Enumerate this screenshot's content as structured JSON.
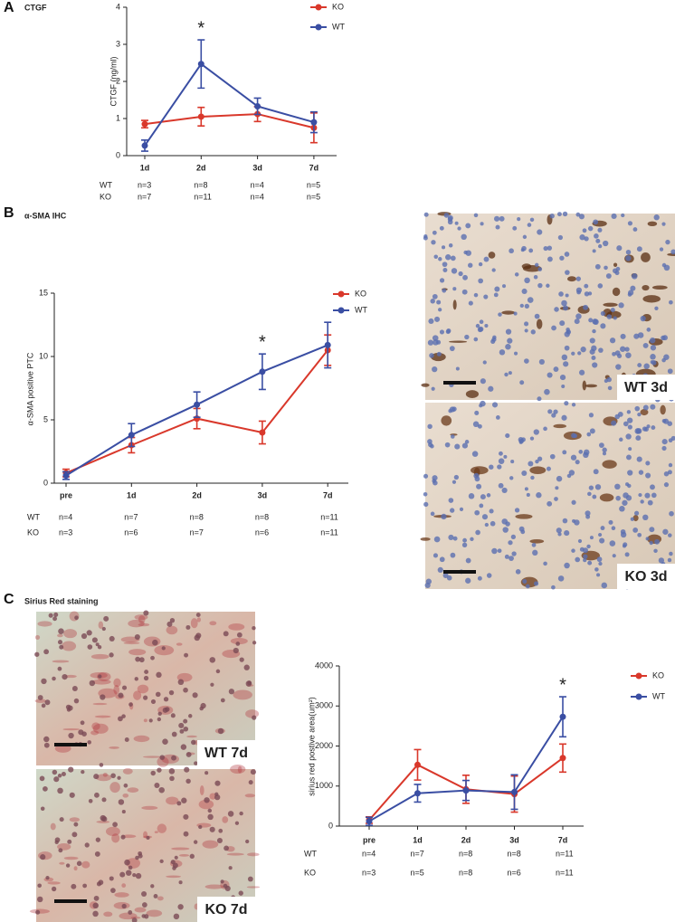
{
  "panels": [
    {
      "letter": "A"
    },
    {
      "letter": "B",
      "images": [
        "WT 3d",
        "KO 3d"
      ]
    },
    {
      "letter": "C",
      "images": [
        "WT 7d",
        "KO 7d"
      ]
    }
  ],
  "chart_data": [
    {
      "type": "line",
      "title": "CTGF",
      "y_label": "CTGF (ng/ml)",
      "categories": [
        "1d",
        "2d",
        "3d",
        "7d"
      ],
      "ylim": [
        0,
        4
      ],
      "yticks": [
        0,
        1,
        2,
        3,
        4
      ],
      "series": [
        {
          "name": "KO",
          "color": "#d9382b",
          "values": [
            0.85,
            1.05,
            1.12,
            0.75
          ],
          "errors": [
            0.1,
            0.25,
            0.2,
            0.4
          ]
        },
        {
          "name": "WT",
          "color": "#3a4ea3",
          "values": [
            0.27,
            2.47,
            1.33,
            0.9
          ],
          "errors": [
            0.15,
            0.65,
            0.22,
            0.28
          ]
        }
      ],
      "annotations": [
        {
          "text": "*",
          "x": "2d"
        }
      ],
      "n_rows": [
        {
          "label": "WT",
          "values": [
            "n=3",
            "n=8",
            "n=4",
            "n=5"
          ]
        },
        {
          "label": "KO",
          "values": [
            "n=7",
            "n=11",
            "n=4",
            "n=5"
          ]
        }
      ]
    },
    {
      "type": "line",
      "title": "α-SMA IHC",
      "y_label": "α-SMA positive PTC",
      "categories": [
        "pre",
        "1d",
        "2d",
        "3d",
        "7d"
      ],
      "ylim": [
        0,
        15
      ],
      "yticks": [
        0,
        5,
        10,
        15
      ],
      "series": [
        {
          "name": "KO",
          "color": "#d9382b",
          "values": [
            0.8,
            3.0,
            5.1,
            4.0,
            10.5
          ],
          "errors": [
            0.3,
            0.6,
            0.8,
            0.9,
            1.2
          ]
        },
        {
          "name": "WT",
          "color": "#3a4ea3",
          "values": [
            0.6,
            3.8,
            6.2,
            8.8,
            10.9
          ],
          "errors": [
            0.3,
            0.9,
            1.0,
            1.4,
            1.8
          ]
        }
      ],
      "annotations": [
        {
          "text": "*",
          "x": "3d"
        }
      ],
      "n_rows": [
        {
          "label": "WT",
          "values": [
            "n=4",
            "n=7",
            "n=8",
            "n=8",
            "n=11"
          ]
        },
        {
          "label": "KO",
          "values": [
            "n=3",
            "n=6",
            "n=7",
            "n=6",
            "n=11"
          ]
        }
      ]
    },
    {
      "type": "line",
      "title": "Sirius Red staining",
      "y_label": "sirius red postive area(um²)",
      "categories": [
        "pre",
        "1d",
        "2d",
        "3d",
        "7d"
      ],
      "ylim": [
        0,
        4000
      ],
      "yticks": [
        0,
        1000,
        2000,
        3000,
        4000
      ],
      "series": [
        {
          "name": "KO",
          "color": "#d9382b",
          "values": [
            150,
            1530,
            920,
            800,
            1700
          ],
          "errors": [
            80,
            380,
            350,
            450,
            350
          ]
        },
        {
          "name": "WT",
          "color": "#3a4ea3",
          "values": [
            120,
            820,
            890,
            850,
            2730
          ],
          "errors": [
            100,
            220,
            250,
            430,
            500
          ]
        }
      ],
      "annotations": [
        {
          "text": "*",
          "x": "7d"
        }
      ],
      "n_rows": [
        {
          "label": "WT",
          "values": [
            "n=4",
            "n=7",
            "n=8",
            "n=8",
            "n=11"
          ]
        },
        {
          "label": "KO",
          "values": [
            "n=3",
            "n=5",
            "n=8",
            "n=6",
            "n=11"
          ]
        }
      ]
    }
  ]
}
